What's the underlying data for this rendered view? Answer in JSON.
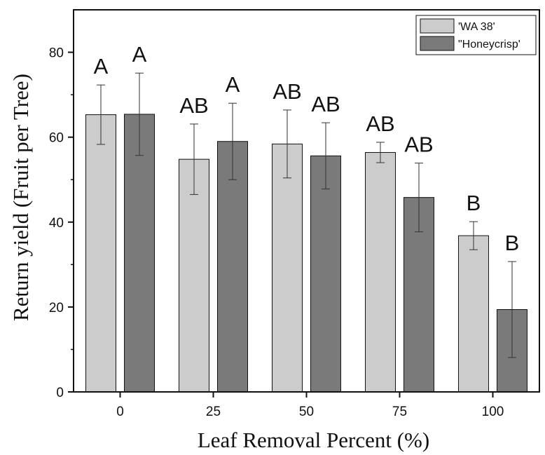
{
  "chart_data": {
    "type": "bar",
    "title": "",
    "xlabel": "Leaf Removal Percent (%)",
    "ylabel": "Return yield (Fruit per Tree)",
    "categories": [
      "0",
      "25",
      "50",
      "75",
      "100"
    ],
    "ylim": [
      0,
      90
    ],
    "yticks": [
      0,
      20,
      40,
      60,
      80
    ],
    "grid": false,
    "legend_position": "top-right",
    "series": [
      {
        "name": "'WA 38'",
        "color": "#cccccc",
        "values": [
          65.3,
          54.8,
          58.4,
          56.4,
          36.8
        ],
        "errors": [
          7.0,
          8.3,
          8.0,
          2.4,
          3.3
        ],
        "labels": [
          "A",
          "AB",
          "AB",
          "AB",
          "B"
        ]
      },
      {
        "name": "\"Honeycrisp'",
        "color": "#7a7a7a",
        "values": [
          65.4,
          59.0,
          55.6,
          45.8,
          19.4
        ],
        "errors": [
          9.7,
          9.0,
          7.8,
          8.1,
          11.3
        ],
        "labels": [
          "A",
          "A",
          "AB",
          "AB",
          "B"
        ]
      }
    ]
  }
}
